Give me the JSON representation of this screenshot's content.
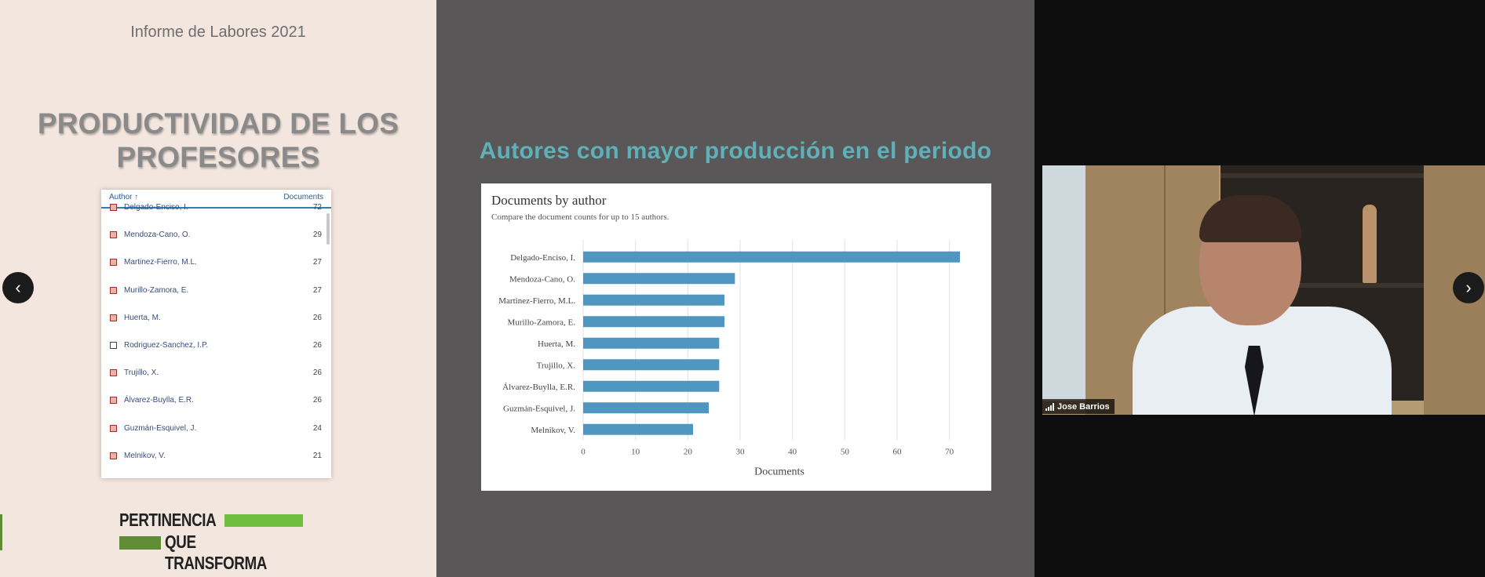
{
  "slide": {
    "report_title": "Informe de Labores 2021",
    "main_title_line1": "PRODUCTIVIDAD DE LOS",
    "main_title_line2": "PROFESORES",
    "chart_heading": "Autores con mayor producción en el periodo"
  },
  "table": {
    "header_author": "Author ↑",
    "header_documents": "Documents",
    "rows": [
      {
        "name": "Delgado-Enciso, I.",
        "count": "72",
        "checked": true
      },
      {
        "name": "Mendoza-Cano, O.",
        "count": "29",
        "checked": true
      },
      {
        "name": "Martinez-Fierro, M.L.",
        "count": "27",
        "checked": true
      },
      {
        "name": "Murillo-Zamora, E.",
        "count": "27",
        "checked": true
      },
      {
        "name": "Huerta, M.",
        "count": "26",
        "checked": true
      },
      {
        "name": "Rodriguez-Sanchez, I.P.",
        "count": "26",
        "checked": false
      },
      {
        "name": "Trujillo, X.",
        "count": "26",
        "checked": true
      },
      {
        "name": "Álvarez-Buylla, E.R.",
        "count": "26",
        "checked": true
      },
      {
        "name": "Guzmán-Esquivel, J.",
        "count": "24",
        "checked": true
      },
      {
        "name": "Melnikov, V.",
        "count": "21",
        "checked": true
      }
    ]
  },
  "logo": {
    "line1": "PERTINENCIA",
    "line2": "QUE TRANSFORMA"
  },
  "chart_data": {
    "type": "bar",
    "title": "Documents by author",
    "subtitle": "Compare the document counts for up to 15 authors.",
    "xlabel": "Documents",
    "ylabel": "",
    "orientation": "horizontal",
    "categories": [
      "Delgado-Enciso, I.",
      "Mendoza-Cano, O.",
      "Martinez-Fierro, M.L.",
      "Murillo-Zamora, E.",
      "Huerta, M.",
      "Trujillo, X.",
      "Álvarez-Buylla, E.R.",
      "Guzmán-Esquivel, J.",
      "Melnikov, V."
    ],
    "values": [
      72,
      29,
      27,
      27,
      26,
      26,
      26,
      24,
      21
    ],
    "xlim": [
      0,
      75
    ],
    "xticks": [
      0,
      10,
      20,
      30,
      40,
      50,
      60,
      70
    ],
    "grid": true,
    "bar_color": "#4f97c0"
  },
  "video": {
    "participant_name": "Jose Barrios"
  },
  "navigation": {
    "prev_label": "‹",
    "next_label": "›"
  }
}
